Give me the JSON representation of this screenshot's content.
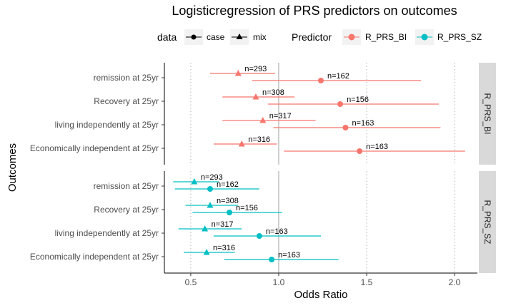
{
  "chart_data": {
    "type": "scatter",
    "title": "Logisticregression of PRS predictors on outcomes",
    "xlabel": "Odds Ratio",
    "ylabel": "Outcomes",
    "xlim": [
      0.35,
      2.13
    ],
    "xticks": [
      0.5,
      1.0,
      1.5,
      2.0
    ],
    "xtick_labels": [
      "0.5",
      "1.0",
      "1.5",
      "2.0"
    ],
    "reference_line": 1.0,
    "grid": "vertical dotted",
    "legend_placement": "top",
    "legend": {
      "data_title": "data",
      "data_items": [
        {
          "label": "case",
          "shape": "circle"
        },
        {
          "label": "mix",
          "shape": "triangle"
        }
      ],
      "predictor_title": "Predictor",
      "predictor_items": [
        {
          "label": "R_PRS_BI",
          "color": "#F8766D"
        },
        {
          "label": "R_PRS_SZ",
          "color": "#00BFC4"
        }
      ]
    },
    "categories": [
      "remission at 25yr",
      "Recovery at 25yr",
      "living independently at 25yr",
      "Economically independent at 25yr"
    ],
    "panels": [
      {
        "strip": "R_PRS_BI",
        "color": "#F8766D",
        "points": [
          {
            "outcome": "remission at 25yr",
            "data": "mix",
            "or": 0.77,
            "lo": 0.61,
            "hi": 0.98,
            "n": "n=293"
          },
          {
            "outcome": "remission at 25yr",
            "data": "case",
            "or": 1.24,
            "lo": 0.85,
            "hi": 1.81,
            "n": "n=162"
          },
          {
            "outcome": "Recovery at 25yr",
            "data": "mix",
            "or": 0.87,
            "lo": 0.68,
            "hi": 1.09,
            "n": "n=308"
          },
          {
            "outcome": "Recovery at 25yr",
            "data": "case",
            "or": 1.35,
            "lo": 0.94,
            "hi": 1.91,
            "n": "n=156"
          },
          {
            "outcome": "living independently at 25yr",
            "data": "mix",
            "or": 0.91,
            "lo": 0.68,
            "hi": 1.21,
            "n": "n=317"
          },
          {
            "outcome": "living independently at 25yr",
            "data": "case",
            "or": 1.38,
            "lo": 0.97,
            "hi": 1.92,
            "n": "n=163"
          },
          {
            "outcome": "Economically independent at 25yr",
            "data": "mix",
            "or": 0.79,
            "lo": 0.63,
            "hi": 0.99,
            "n": "n=316"
          },
          {
            "outcome": "Economically independent at 25yr",
            "data": "case",
            "or": 1.46,
            "lo": 1.03,
            "hi": 2.06,
            "n": "n=163"
          }
        ]
      },
      {
        "strip": "R_PRS_SZ",
        "color": "#00BFC4",
        "points": [
          {
            "outcome": "remission at 25yr",
            "data": "mix",
            "or": 0.52,
            "lo": 0.4,
            "hi": 0.66,
            "n": "n=293"
          },
          {
            "outcome": "remission at 25yr",
            "data": "case",
            "or": 0.61,
            "lo": 0.41,
            "hi": 0.89,
            "n": "n=162"
          },
          {
            "outcome": "Recovery at 25yr",
            "data": "mix",
            "or": 0.61,
            "lo": 0.47,
            "hi": 0.77,
            "n": "n=308"
          },
          {
            "outcome": "Recovery at 25yr",
            "data": "case",
            "or": 0.72,
            "lo": 0.51,
            "hi": 1.02,
            "n": "n=156"
          },
          {
            "outcome": "living independently at 25yr",
            "data": "mix",
            "or": 0.58,
            "lo": 0.43,
            "hi": 0.79,
            "n": "n=317"
          },
          {
            "outcome": "living independently at 25yr",
            "data": "case",
            "or": 0.89,
            "lo": 0.63,
            "hi": 1.24,
            "n": "n=163"
          },
          {
            "outcome": "Economically independent at 25yr",
            "data": "mix",
            "or": 0.59,
            "lo": 0.46,
            "hi": 0.75,
            "n": "n=316"
          },
          {
            "outcome": "Economically independent at 25yr",
            "data": "case",
            "or": 0.96,
            "lo": 0.69,
            "hi": 1.34,
            "n": "n=163"
          }
        ]
      }
    ]
  }
}
